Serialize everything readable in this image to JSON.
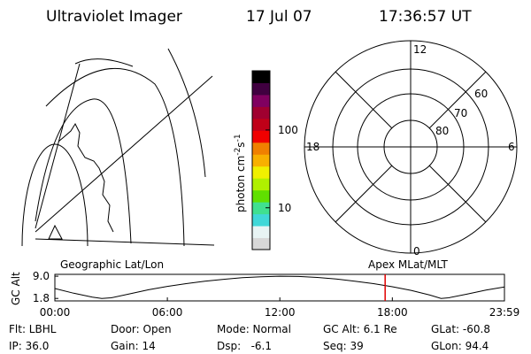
{
  "header": {
    "title": "Ultraviolet Imager",
    "date": "17 Jul 07",
    "time": "17:36:57 UT"
  },
  "colorbar": {
    "label": "photon cm",
    "exp1": "-2",
    "unit2": "s",
    "exp2": "-1",
    "log": true,
    "ylim": [
      2.9,
      577
    ],
    "yticks": [
      10,
      100
    ],
    "colors": [
      "#d8d8d8",
      "#e8f4f4",
      "#40d8d8",
      "#40e090",
      "#60e000",
      "#b0f000",
      "#f0f000",
      "#f8b000",
      "#f08000",
      "#f00000",
      "#c00018",
      "#a00030",
      "#800060",
      "#400040",
      "#000000"
    ]
  },
  "polar": {
    "mlt_labels": [
      "12",
      "18",
      "6",
      "0"
    ],
    "lat_labels": [
      "60",
      "70",
      "80"
    ]
  },
  "map_labels": {
    "left": "Geographic Lat/Lon",
    "right": "Apex MLat/MLT"
  },
  "chart_data": {
    "type": "line",
    "y_label": "GC Alt",
    "color": "#000000",
    "x": [
      0,
      1,
      2,
      2.5,
      3,
      4,
      5,
      6,
      7,
      8,
      9,
      10,
      11,
      12,
      13,
      14,
      15,
      16,
      17,
      18,
      19,
      20,
      20.6,
      21,
      22,
      23,
      23.98
    ],
    "values": [
      5.0,
      3.5,
      2.2,
      1.8,
      2.0,
      3.3,
      4.6,
      5.7,
      6.6,
      7.4,
      8.0,
      8.5,
      8.8,
      9.0,
      8.9,
      8.6,
      8.1,
      7.4,
      6.6,
      5.6,
      4.4,
      2.9,
      1.8,
      2.0,
      3.2,
      4.5,
      5.5
    ],
    "xlim": [
      0,
      23.98
    ],
    "ylim": [
      1.0,
      9.6
    ],
    "xticks": [
      {
        "value": 0,
        "label": "00:00"
      },
      {
        "value": 6,
        "label": "06:00"
      },
      {
        "value": 12,
        "label": "12:00"
      },
      {
        "value": 18,
        "label": "18:00"
      },
      {
        "value": 23.98,
        "label": "23:59"
      }
    ],
    "yticks": [
      {
        "value": 9.0,
        "label": "9.0"
      },
      1.8
    ],
    "marker": {
      "x": 17.616,
      "color": "#e00000"
    }
  },
  "info": {
    "rows": [
      [
        "Flt: LBHL",
        "Door: Open",
        "Mode: Normal",
        "GC Alt: 6.1 Re",
        "GLat: -60.8"
      ],
      [
        "IP: 36.0",
        "Gain: 14",
        "Dsp:   -6.1",
        "Seq: 39",
        "GLon: 94.4"
      ]
    ]
  }
}
